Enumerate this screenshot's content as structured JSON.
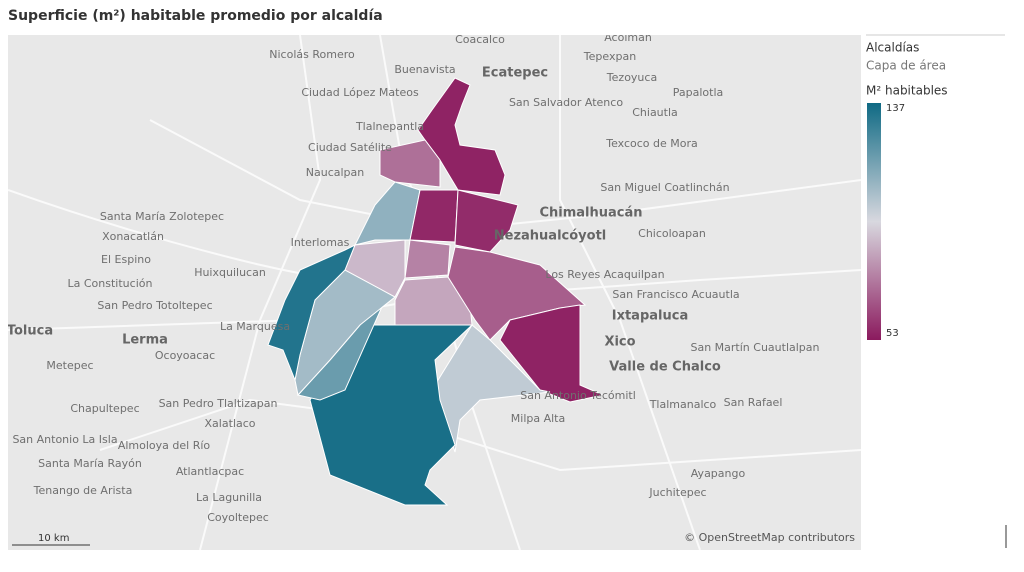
{
  "title": "Superficie (m²) habitable promedio por alcaldía",
  "map": {
    "places": [
      "Coacalco",
      "Acolman",
      "Nicolás Romero",
      "Tepexpan",
      "Buenavista",
      "Ecatepec",
      "Tezoyuca",
      "Ciudad López Mateos",
      "San Salvador Atenco",
      "Papalotla",
      "Chiautla",
      "Tlalnepantla",
      "Ciudad Satélite",
      "Texcoco de Mora",
      "Naucalpan",
      "San Miguel Coatlinchán",
      "Santa María Zolotepec",
      "Chimalhuacán",
      "Xonacatlán",
      "Interlomas",
      "Nezahualcóyotl",
      "Chicoloapan",
      "El Espino",
      "Huixquilucan",
      "Los Reyes Acaquilpan",
      "La Constitución",
      "San Francisco Acuautla",
      "San Pedro Totoltepec",
      "Toluca",
      "La Marquesa",
      "Ixtapaluca",
      "Lerma",
      "Xico",
      "San Martín Cuautlalpan",
      "Ocoyoacac",
      "Metepec",
      "Valle de Chalco",
      "Chapultepec",
      "San Pedro Tlaltizapan",
      "San Antonio Tecómitl",
      "Tlalmanalco",
      "San Rafael",
      "Xalatlaco",
      "Milpa Alta",
      "San Antonio La Isla",
      "Almoloya del Río",
      "Santa María Rayón",
      "Atlantlacpac",
      "Ayapango",
      "Tenango de Arista",
      "Juchitepec",
      "La Lagunilla",
      "Coyoltepec"
    ],
    "scale_label": "10 km",
    "attribution": "© OpenStreetMap contributors"
  },
  "legend": {
    "layer_title": "Alcaldías",
    "layer_subtitle": "Capa de área",
    "color_title": "M² habitables",
    "max": 137,
    "min": 53
  },
  "colors": [
    "#8b1a5e",
    "#d8d8df",
    "#0f6a84"
  ],
  "regions": [
    55,
    72,
    110,
    56,
    57,
    76,
    88,
    84,
    68,
    55,
    100,
    135,
    118,
    106,
    133
  ]
}
